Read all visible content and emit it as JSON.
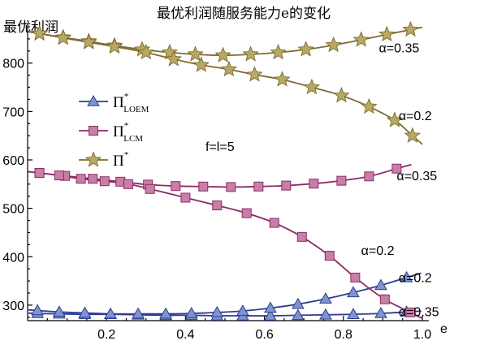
{
  "chart_data": {
    "type": "line",
    "title": "最优利润随服务能力e的变化",
    "ylabel": "最优利润",
    "xlabel": "e",
    "xlim": [
      0.0,
      1.0
    ],
    "ylim": [
      268,
      880
    ],
    "x_ticks": [
      0.2,
      0.4,
      0.6,
      0.8,
      1.0
    ],
    "x_tick_labels": [
      "0.2",
      "0.4",
      "0.6",
      "0.8",
      "1.0"
    ],
    "y_ticks": [
      300,
      400,
      500,
      600,
      700,
      800
    ],
    "y_tick_labels": [
      "300",
      "400",
      "500",
      "600",
      "700",
      "800"
    ],
    "grid": false,
    "legend": {
      "placement": "center-left",
      "entries": [
        {
          "symbol": "Π",
          "sup": "*",
          "sub": "LOEM",
          "marker": "triangle",
          "color": "#2e3d8f",
          "fill": "#7f93cf"
        },
        {
          "symbol": "Π",
          "sup": "*",
          "sub": "LCM",
          "marker": "square",
          "color": "#8e2a63",
          "fill": "#c77fa8"
        },
        {
          "symbol": "Π",
          "sup": "*",
          "sub": "",
          "marker": "star",
          "color": "#7d6d2e",
          "fill": "#b8a865"
        }
      ]
    },
    "annotation": "f=l=5",
    "series": [
      {
        "legend_index": 0,
        "marker": "triangle",
        "label": "α=0.35",
        "x": [
          0.025,
          0.08,
          0.145,
          0.21,
          0.28,
          0.35,
          0.415,
          0.48,
          0.545,
          0.615,
          0.685,
          0.755,
          0.825,
          0.895,
          0.96
        ],
        "y": [
          283,
          282,
          281,
          281,
          280,
          279,
          279,
          278,
          278,
          278,
          279,
          280,
          281,
          283,
          286
        ]
      },
      {
        "legend_index": 0,
        "marker": "triangle",
        "label": "α=0.2",
        "x": [
          0.025,
          0.08,
          0.145,
          0.21,
          0.28,
          0.35,
          0.415,
          0.48,
          0.545,
          0.615,
          0.685,
          0.755,
          0.825,
          0.895,
          0.96
        ],
        "y": [
          289,
          286,
          284,
          282,
          282,
          282,
          283,
          285,
          288,
          294,
          302,
          313,
          326,
          341,
          357
        ]
      },
      {
        "legend_index": 1,
        "marker": "square",
        "label": "α=0.35",
        "x": [
          0.03,
          0.095,
          0.165,
          0.235,
          0.305,
          0.375,
          0.445,
          0.515,
          0.585,
          0.655,
          0.725,
          0.795,
          0.865,
          0.935
        ],
        "y": [
          573,
          567,
          561,
          555,
          549,
          546,
          545,
          544,
          545,
          547,
          551,
          557,
          566,
          582
        ]
      },
      {
        "legend_index": 1,
        "marker": "square",
        "label": "α=0.2",
        "x": [
          0.03,
          0.08,
          0.135,
          0.195,
          0.255,
          0.31,
          0.4,
          0.48,
          0.555,
          0.625,
          0.695,
          0.765,
          0.83,
          0.905,
          0.97
        ],
        "y": [
          573,
          568,
          561,
          556,
          550,
          540,
          522,
          506,
          490,
          470,
          441,
          402,
          357,
          312,
          285
        ]
      },
      {
        "legend_index": 2,
        "marker": "star",
        "label": "α=0.35",
        "x": [
          0.03,
          0.09,
          0.155,
          0.22,
          0.29,
          0.36,
          0.425,
          0.495,
          0.565,
          0.635,
          0.705,
          0.775,
          0.845,
          0.91,
          0.97
        ],
        "y": [
          861,
          853,
          845,
          836,
          828,
          822,
          818,
          816,
          818,
          822,
          828,
          837,
          848,
          859,
          869
        ]
      },
      {
        "legend_index": 2,
        "marker": "star",
        "label": "α=0.2",
        "x": [
          0.03,
          0.09,
          0.155,
          0.22,
          0.3,
          0.37,
          0.44,
          0.51,
          0.575,
          0.645,
          0.72,
          0.795,
          0.865,
          0.93,
          0.975
        ],
        "y": [
          861,
          852,
          843,
          834,
          822,
          808,
          796,
          787,
          776,
          766,
          750,
          733,
          710,
          682,
          650
        ]
      }
    ],
    "series_labels": [
      {
        "text": "α=0.35",
        "x": 0.89,
        "y": 832
      },
      {
        "text": "α=0.2",
        "x": 0.94,
        "y": 692
      },
      {
        "text": "α=0.35",
        "x": 0.935,
        "y": 568
      },
      {
        "text": "α=0.2",
        "x": 0.845,
        "y": 414
      },
      {
        "text": "α=0.2",
        "x": 0.94,
        "y": 358
      },
      {
        "text": "α=0.35",
        "x": 0.94,
        "y": 287
      }
    ]
  }
}
